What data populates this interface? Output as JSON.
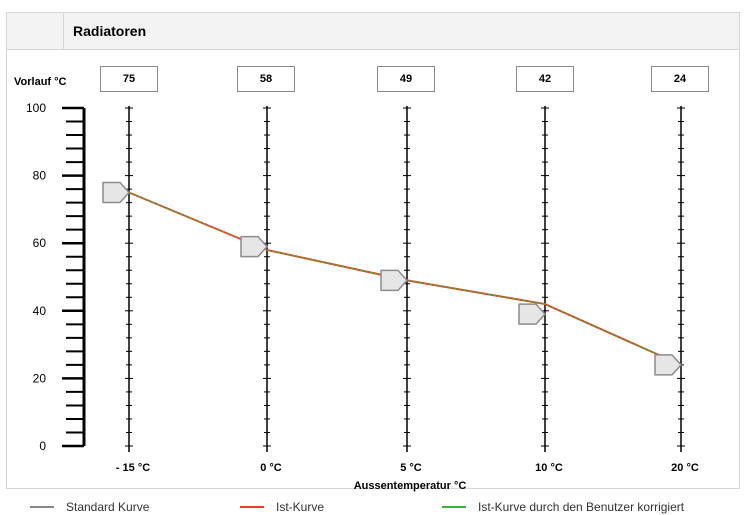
{
  "header": {
    "title": "Radiatoren"
  },
  "vorlauf_label": "Vorlauf °C",
  "xaxis_title": "Aussentemperatur °C",
  "legend": [
    {
      "label": "Standard Kurve",
      "color": "#888888"
    },
    {
      "label": "Ist-Kurve",
      "color": "#e8402a"
    },
    {
      "label": "Ist-Kurve durch den Benutzer korrigiert",
      "color": "#3cb534"
    }
  ],
  "colors": {
    "standard_curve": "#888888",
    "ist_curve": "#e8402a",
    "corrected_curve": "#3cb534",
    "axis": "#000000",
    "marker_fill": "#e6e6e6",
    "marker_stroke": "#8c8c8c"
  },
  "chart_data": {
    "type": "line",
    "xlabel": "Aussentemperatur °C",
    "ylabel": "Vorlauf °C",
    "ylim": [
      0,
      100
    ],
    "yticks": [
      "100",
      "80",
      "60",
      "40",
      "20",
      "0"
    ],
    "categories": [
      "- 15 °C",
      "0 °C",
      "5 °C",
      "10 °C",
      "20 °C"
    ],
    "values": [
      75,
      58,
      49,
      42,
      24
    ],
    "value_labels": [
      "75",
      "58",
      "49",
      "42",
      "24"
    ],
    "marker_values": [
      75,
      59,
      49,
      39,
      24
    ]
  }
}
